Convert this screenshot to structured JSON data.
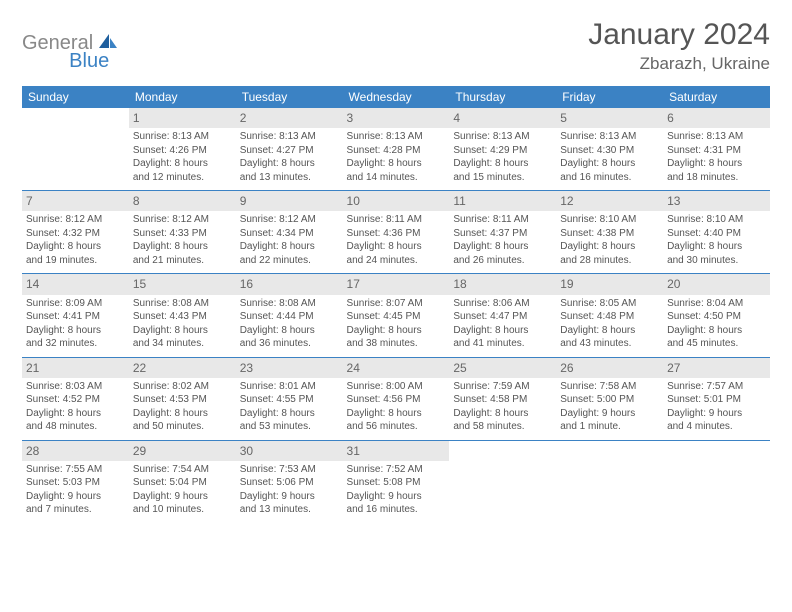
{
  "logo": {
    "text1": "General",
    "text2": "Blue"
  },
  "title": "January 2024",
  "location": "Zbarazh, Ukraine",
  "colors": {
    "header_bg": "#3b82c4",
    "header_fg": "#ffffff",
    "daynum_bg": "#e8e8e8",
    "border": "#3b82c4",
    "text": "#555555"
  },
  "days_of_week": [
    "Sunday",
    "Monday",
    "Tuesday",
    "Wednesday",
    "Thursday",
    "Friday",
    "Saturday"
  ],
  "weeks": [
    [
      {
        "n": "",
        "empty": true
      },
      {
        "n": "1",
        "sr": "Sunrise: 8:13 AM",
        "ss": "Sunset: 4:26 PM",
        "d1": "Daylight: 8 hours",
        "d2": "and 12 minutes."
      },
      {
        "n": "2",
        "sr": "Sunrise: 8:13 AM",
        "ss": "Sunset: 4:27 PM",
        "d1": "Daylight: 8 hours",
        "d2": "and 13 minutes."
      },
      {
        "n": "3",
        "sr": "Sunrise: 8:13 AM",
        "ss": "Sunset: 4:28 PM",
        "d1": "Daylight: 8 hours",
        "d2": "and 14 minutes."
      },
      {
        "n": "4",
        "sr": "Sunrise: 8:13 AM",
        "ss": "Sunset: 4:29 PM",
        "d1": "Daylight: 8 hours",
        "d2": "and 15 minutes."
      },
      {
        "n": "5",
        "sr": "Sunrise: 8:13 AM",
        "ss": "Sunset: 4:30 PM",
        "d1": "Daylight: 8 hours",
        "d2": "and 16 minutes."
      },
      {
        "n": "6",
        "sr": "Sunrise: 8:13 AM",
        "ss": "Sunset: 4:31 PM",
        "d1": "Daylight: 8 hours",
        "d2": "and 18 minutes."
      }
    ],
    [
      {
        "n": "7",
        "sr": "Sunrise: 8:12 AM",
        "ss": "Sunset: 4:32 PM",
        "d1": "Daylight: 8 hours",
        "d2": "and 19 minutes."
      },
      {
        "n": "8",
        "sr": "Sunrise: 8:12 AM",
        "ss": "Sunset: 4:33 PM",
        "d1": "Daylight: 8 hours",
        "d2": "and 21 minutes."
      },
      {
        "n": "9",
        "sr": "Sunrise: 8:12 AM",
        "ss": "Sunset: 4:34 PM",
        "d1": "Daylight: 8 hours",
        "d2": "and 22 minutes."
      },
      {
        "n": "10",
        "sr": "Sunrise: 8:11 AM",
        "ss": "Sunset: 4:36 PM",
        "d1": "Daylight: 8 hours",
        "d2": "and 24 minutes."
      },
      {
        "n": "11",
        "sr": "Sunrise: 8:11 AM",
        "ss": "Sunset: 4:37 PM",
        "d1": "Daylight: 8 hours",
        "d2": "and 26 minutes."
      },
      {
        "n": "12",
        "sr": "Sunrise: 8:10 AM",
        "ss": "Sunset: 4:38 PM",
        "d1": "Daylight: 8 hours",
        "d2": "and 28 minutes."
      },
      {
        "n": "13",
        "sr": "Sunrise: 8:10 AM",
        "ss": "Sunset: 4:40 PM",
        "d1": "Daylight: 8 hours",
        "d2": "and 30 minutes."
      }
    ],
    [
      {
        "n": "14",
        "sr": "Sunrise: 8:09 AM",
        "ss": "Sunset: 4:41 PM",
        "d1": "Daylight: 8 hours",
        "d2": "and 32 minutes."
      },
      {
        "n": "15",
        "sr": "Sunrise: 8:08 AM",
        "ss": "Sunset: 4:43 PM",
        "d1": "Daylight: 8 hours",
        "d2": "and 34 minutes."
      },
      {
        "n": "16",
        "sr": "Sunrise: 8:08 AM",
        "ss": "Sunset: 4:44 PM",
        "d1": "Daylight: 8 hours",
        "d2": "and 36 minutes."
      },
      {
        "n": "17",
        "sr": "Sunrise: 8:07 AM",
        "ss": "Sunset: 4:45 PM",
        "d1": "Daylight: 8 hours",
        "d2": "and 38 minutes."
      },
      {
        "n": "18",
        "sr": "Sunrise: 8:06 AM",
        "ss": "Sunset: 4:47 PM",
        "d1": "Daylight: 8 hours",
        "d2": "and 41 minutes."
      },
      {
        "n": "19",
        "sr": "Sunrise: 8:05 AM",
        "ss": "Sunset: 4:48 PM",
        "d1": "Daylight: 8 hours",
        "d2": "and 43 minutes."
      },
      {
        "n": "20",
        "sr": "Sunrise: 8:04 AM",
        "ss": "Sunset: 4:50 PM",
        "d1": "Daylight: 8 hours",
        "d2": "and 45 minutes."
      }
    ],
    [
      {
        "n": "21",
        "sr": "Sunrise: 8:03 AM",
        "ss": "Sunset: 4:52 PM",
        "d1": "Daylight: 8 hours",
        "d2": "and 48 minutes."
      },
      {
        "n": "22",
        "sr": "Sunrise: 8:02 AM",
        "ss": "Sunset: 4:53 PM",
        "d1": "Daylight: 8 hours",
        "d2": "and 50 minutes."
      },
      {
        "n": "23",
        "sr": "Sunrise: 8:01 AM",
        "ss": "Sunset: 4:55 PM",
        "d1": "Daylight: 8 hours",
        "d2": "and 53 minutes."
      },
      {
        "n": "24",
        "sr": "Sunrise: 8:00 AM",
        "ss": "Sunset: 4:56 PM",
        "d1": "Daylight: 8 hours",
        "d2": "and 56 minutes."
      },
      {
        "n": "25",
        "sr": "Sunrise: 7:59 AM",
        "ss": "Sunset: 4:58 PM",
        "d1": "Daylight: 8 hours",
        "d2": "and 58 minutes."
      },
      {
        "n": "26",
        "sr": "Sunrise: 7:58 AM",
        "ss": "Sunset: 5:00 PM",
        "d1": "Daylight: 9 hours",
        "d2": "and 1 minute."
      },
      {
        "n": "27",
        "sr": "Sunrise: 7:57 AM",
        "ss": "Sunset: 5:01 PM",
        "d1": "Daylight: 9 hours",
        "d2": "and 4 minutes."
      }
    ],
    [
      {
        "n": "28",
        "sr": "Sunrise: 7:55 AM",
        "ss": "Sunset: 5:03 PM",
        "d1": "Daylight: 9 hours",
        "d2": "and 7 minutes."
      },
      {
        "n": "29",
        "sr": "Sunrise: 7:54 AM",
        "ss": "Sunset: 5:04 PM",
        "d1": "Daylight: 9 hours",
        "d2": "and 10 minutes."
      },
      {
        "n": "30",
        "sr": "Sunrise: 7:53 AM",
        "ss": "Sunset: 5:06 PM",
        "d1": "Daylight: 9 hours",
        "d2": "and 13 minutes."
      },
      {
        "n": "31",
        "sr": "Sunrise: 7:52 AM",
        "ss": "Sunset: 5:08 PM",
        "d1": "Daylight: 9 hours",
        "d2": "and 16 minutes."
      },
      {
        "n": "",
        "empty": true
      },
      {
        "n": "",
        "empty": true
      },
      {
        "n": "",
        "empty": true
      }
    ]
  ]
}
